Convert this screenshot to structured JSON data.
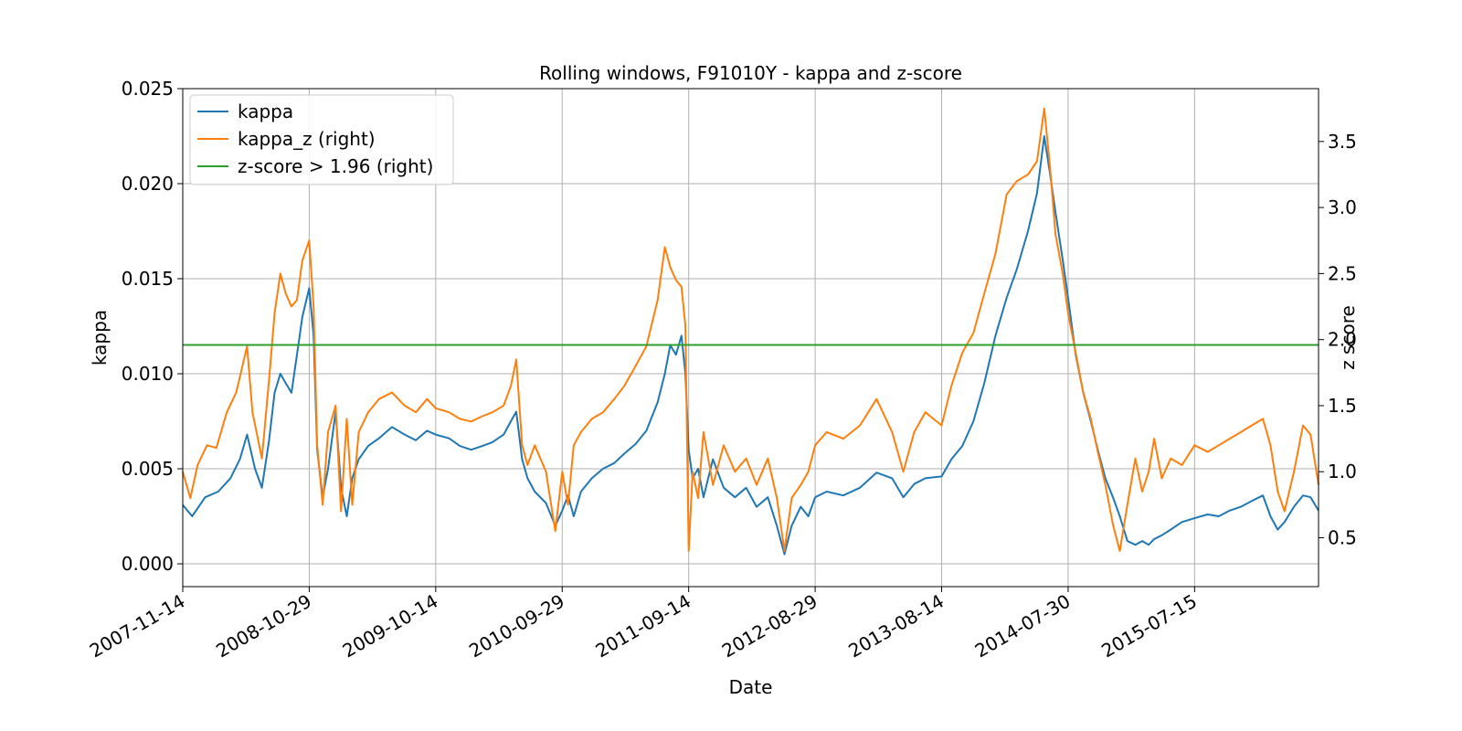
{
  "chart_data": {
    "type": "line",
    "title": "Rolling windows, F91010Y - kappa and z-score",
    "xlabel": "Date",
    "ylabel": "kappa",
    "y2label": "z score",
    "x_ticks": [
      "2007-11-14",
      "2008-10-29",
      "2009-10-14",
      "2010-09-29",
      "2011-09-14",
      "2012-08-29",
      "2013-08-14",
      "2014-07-30",
      "2015-07-15"
    ],
    "xlim": [
      "2007-11-14",
      "2016-06-22"
    ],
    "ylim": [
      -0.0012,
      0.025
    ],
    "y_ticks": [
      "0.000",
      "0.005",
      "0.010",
      "0.015",
      "0.020",
      "0.025"
    ],
    "y2lim": [
      0.13,
      3.9
    ],
    "y2_ticks": [
      "0.5",
      "1.0",
      "1.5",
      "2.0",
      "2.5",
      "3.0",
      "3.5"
    ],
    "grid": true,
    "legend_position": "top-left",
    "legend": [
      "kappa",
      "kappa_z (right)",
      "z-score > 1.96 (right)"
    ],
    "series": [
      {
        "name": "kappa",
        "axis": "left",
        "color": "#1f77b4",
        "points": [
          [
            "2007-11-14",
            0.0031
          ],
          [
            "2007-12-10",
            0.0025
          ],
          [
            "2008-01-15",
            0.0035
          ],
          [
            "2008-02-20",
            0.0038
          ],
          [
            "2008-03-25",
            0.0045
          ],
          [
            "2008-04-20",
            0.0055
          ],
          [
            "2008-05-10",
            0.0068
          ],
          [
            "2008-06-01",
            0.005
          ],
          [
            "2008-06-20",
            0.004
          ],
          [
            "2008-07-10",
            0.0065
          ],
          [
            "2008-07-25",
            0.009
          ],
          [
            "2008-08-10",
            0.01
          ],
          [
            "2008-08-25",
            0.0095
          ],
          [
            "2008-09-10",
            0.009
          ],
          [
            "2008-09-25",
            0.011
          ],
          [
            "2008-10-10",
            0.013
          ],
          [
            "2008-10-29",
            0.0145
          ],
          [
            "2008-11-10",
            0.012
          ],
          [
            "2008-11-20",
            0.006
          ],
          [
            "2008-12-05",
            0.0035
          ],
          [
            "2008-12-20",
            0.005
          ],
          [
            "2009-01-10",
            0.008
          ],
          [
            "2009-01-25",
            0.004
          ],
          [
            "2009-02-10",
            0.0025
          ],
          [
            "2009-02-25",
            0.0045
          ],
          [
            "2009-03-15",
            0.0055
          ],
          [
            "2009-04-10",
            0.0062
          ],
          [
            "2009-05-10",
            0.0066
          ],
          [
            "2009-06-15",
            0.0072
          ],
          [
            "2009-07-20",
            0.0068
          ],
          [
            "2009-08-20",
            0.0065
          ],
          [
            "2009-09-20",
            0.007
          ],
          [
            "2009-10-14",
            0.0068
          ],
          [
            "2009-11-20",
            0.0066
          ],
          [
            "2009-12-20",
            0.0062
          ],
          [
            "2010-01-20",
            0.006
          ],
          [
            "2010-02-20",
            0.0062
          ],
          [
            "2010-03-20",
            0.0064
          ],
          [
            "2010-04-20",
            0.0068
          ],
          [
            "2010-05-10",
            0.0075
          ],
          [
            "2010-05-25",
            0.008
          ],
          [
            "2010-06-10",
            0.0055
          ],
          [
            "2010-06-25",
            0.0045
          ],
          [
            "2010-07-15",
            0.0038
          ],
          [
            "2010-08-15",
            0.0032
          ],
          [
            "2010-09-10",
            0.002
          ],
          [
            "2010-09-29",
            0.0028
          ],
          [
            "2010-10-15",
            0.0036
          ],
          [
            "2010-10-31",
            0.0025
          ],
          [
            "2010-11-20",
            0.0038
          ],
          [
            "2010-12-20",
            0.0045
          ],
          [
            "2011-01-20",
            0.005
          ],
          [
            "2011-02-20",
            0.0053
          ],
          [
            "2011-03-20",
            0.0058
          ],
          [
            "2011-04-20",
            0.0063
          ],
          [
            "2011-05-20",
            0.007
          ],
          [
            "2011-06-20",
            0.0085
          ],
          [
            "2011-07-10",
            0.01
          ],
          [
            "2011-07-25",
            0.0115
          ],
          [
            "2011-08-10",
            0.011
          ],
          [
            "2011-08-25",
            0.012
          ],
          [
            "2011-09-05",
            0.01
          ],
          [
            "2011-09-14",
            0.006
          ],
          [
            "2011-09-25",
            0.0045
          ],
          [
            "2011-10-10",
            0.005
          ],
          [
            "2011-10-25",
            0.0035
          ],
          [
            "2011-11-20",
            0.0055
          ],
          [
            "2011-12-20",
            0.004
          ],
          [
            "2012-01-20",
            0.0035
          ],
          [
            "2012-02-20",
            0.004
          ],
          [
            "2012-03-20",
            0.003
          ],
          [
            "2012-04-20",
            0.0035
          ],
          [
            "2012-05-15",
            0.002
          ],
          [
            "2012-06-05",
            0.0005
          ],
          [
            "2012-06-25",
            0.002
          ],
          [
            "2012-07-20",
            0.003
          ],
          [
            "2012-08-10",
            0.0025
          ],
          [
            "2012-08-29",
            0.0035
          ],
          [
            "2012-09-30",
            0.0038
          ],
          [
            "2012-11-15",
            0.0036
          ],
          [
            "2012-12-31",
            0.004
          ],
          [
            "2013-02-15",
            0.0048
          ],
          [
            "2013-03-30",
            0.0045
          ],
          [
            "2013-04-30",
            0.0035
          ],
          [
            "2013-05-30",
            0.0042
          ],
          [
            "2013-06-30",
            0.0045
          ],
          [
            "2013-08-14",
            0.0046
          ],
          [
            "2013-09-10",
            0.0055
          ],
          [
            "2013-10-10",
            0.0062
          ],
          [
            "2013-11-10",
            0.0075
          ],
          [
            "2013-12-10",
            0.0095
          ],
          [
            "2014-01-10",
            0.012
          ],
          [
            "2014-02-10",
            0.014
          ],
          [
            "2014-03-10",
            0.0155
          ],
          [
            "2014-04-10",
            0.0175
          ],
          [
            "2014-05-05",
            0.0195
          ],
          [
            "2014-05-25",
            0.0225
          ],
          [
            "2014-06-10",
            0.0205
          ],
          [
            "2014-06-25",
            0.0185
          ],
          [
            "2014-07-15",
            0.016
          ],
          [
            "2014-07-30",
            0.014
          ],
          [
            "2014-08-20",
            0.011
          ],
          [
            "2014-09-10",
            0.009
          ],
          [
            "2014-10-01",
            0.0075
          ],
          [
            "2014-10-20",
            0.006
          ],
          [
            "2014-11-10",
            0.0045
          ],
          [
            "2014-12-01",
            0.0035
          ],
          [
            "2014-12-20",
            0.0025
          ],
          [
            "2015-01-10",
            0.0012
          ],
          [
            "2015-02-01",
            0.001
          ],
          [
            "2015-02-20",
            0.0012
          ],
          [
            "2015-03-10",
            0.001
          ],
          [
            "2015-03-25",
            0.0013
          ],
          [
            "2015-04-15",
            0.0015
          ],
          [
            "2015-05-10",
            0.0018
          ],
          [
            "2015-06-10",
            0.0022
          ],
          [
            "2015-07-15",
            0.0024
          ],
          [
            "2015-08-20",
            0.0026
          ],
          [
            "2015-09-20",
            0.0025
          ],
          [
            "2015-10-20",
            0.0028
          ],
          [
            "2015-11-20",
            0.003
          ],
          [
            "2015-12-20",
            0.0033
          ],
          [
            "2016-01-20",
            0.0036
          ],
          [
            "2016-02-10",
            0.0025
          ],
          [
            "2016-03-01",
            0.0018
          ],
          [
            "2016-03-20",
            0.0022
          ],
          [
            "2016-04-15",
            0.003
          ],
          [
            "2016-05-10",
            0.0036
          ],
          [
            "2016-05-31",
            0.0035
          ],
          [
            "2016-06-22",
            0.0028
          ]
        ]
      },
      {
        "name": "kappa_z (right)",
        "axis": "right",
        "color": "#ff7f0e",
        "points": [
          [
            "2007-11-14",
            1.0
          ],
          [
            "2007-12-05",
            0.8
          ],
          [
            "2007-12-25",
            1.05
          ],
          [
            "2008-01-20",
            1.2
          ],
          [
            "2008-02-15",
            1.18
          ],
          [
            "2008-03-15",
            1.45
          ],
          [
            "2008-04-10",
            1.6
          ],
          [
            "2008-05-10",
            1.95
          ],
          [
            "2008-05-25",
            1.45
          ],
          [
            "2008-06-20",
            1.1
          ],
          [
            "2008-07-10",
            1.7
          ],
          [
            "2008-07-25",
            2.2
          ],
          [
            "2008-08-10",
            2.5
          ],
          [
            "2008-08-25",
            2.35
          ],
          [
            "2008-09-10",
            2.25
          ],
          [
            "2008-09-25",
            2.3
          ],
          [
            "2008-10-10",
            2.6
          ],
          [
            "2008-10-29",
            2.75
          ],
          [
            "2008-11-10",
            2.25
          ],
          [
            "2008-11-20",
            1.2
          ],
          [
            "2008-12-05",
            0.75
          ],
          [
            "2008-12-20",
            1.3
          ],
          [
            "2009-01-10",
            1.5
          ],
          [
            "2009-01-25",
            0.7
          ],
          [
            "2009-02-10",
            1.4
          ],
          [
            "2009-02-25",
            0.75
          ],
          [
            "2009-03-15",
            1.3
          ],
          [
            "2009-04-10",
            1.45
          ],
          [
            "2009-05-10",
            1.55
          ],
          [
            "2009-06-15",
            1.6
          ],
          [
            "2009-07-20",
            1.5
          ],
          [
            "2009-08-20",
            1.45
          ],
          [
            "2009-09-20",
            1.55
          ],
          [
            "2009-10-14",
            1.48
          ],
          [
            "2009-11-20",
            1.45
          ],
          [
            "2009-12-20",
            1.4
          ],
          [
            "2010-01-20",
            1.38
          ],
          [
            "2010-02-20",
            1.42
          ],
          [
            "2010-03-20",
            1.45
          ],
          [
            "2010-04-20",
            1.5
          ],
          [
            "2010-05-10",
            1.65
          ],
          [
            "2010-05-25",
            1.85
          ],
          [
            "2010-06-10",
            1.2
          ],
          [
            "2010-06-25",
            1.05
          ],
          [
            "2010-07-15",
            1.2
          ],
          [
            "2010-08-15",
            1.0
          ],
          [
            "2010-09-10",
            0.55
          ],
          [
            "2010-09-29",
            1.0
          ],
          [
            "2010-10-15",
            0.75
          ],
          [
            "2010-10-31",
            1.2
          ],
          [
            "2010-11-20",
            1.3
          ],
          [
            "2010-12-20",
            1.4
          ],
          [
            "2011-01-20",
            1.45
          ],
          [
            "2011-02-20",
            1.55
          ],
          [
            "2011-03-20",
            1.65
          ],
          [
            "2011-04-20",
            1.8
          ],
          [
            "2011-05-20",
            1.95
          ],
          [
            "2011-06-20",
            2.3
          ],
          [
            "2011-07-10",
            2.7
          ],
          [
            "2011-07-25",
            2.55
          ],
          [
            "2011-08-10",
            2.45
          ],
          [
            "2011-08-25",
            2.4
          ],
          [
            "2011-09-05",
            2.1
          ],
          [
            "2011-09-14",
            0.4
          ],
          [
            "2011-09-25",
            1.0
          ],
          [
            "2011-10-10",
            0.8
          ],
          [
            "2011-10-25",
            1.3
          ],
          [
            "2011-11-20",
            0.9
          ],
          [
            "2011-12-20",
            1.2
          ],
          [
            "2012-01-20",
            1.0
          ],
          [
            "2012-02-20",
            1.1
          ],
          [
            "2012-03-20",
            0.9
          ],
          [
            "2012-04-20",
            1.1
          ],
          [
            "2012-05-15",
            0.8
          ],
          [
            "2012-06-05",
            0.4
          ],
          [
            "2012-06-25",
            0.8
          ],
          [
            "2012-07-20",
            0.9
          ],
          [
            "2012-08-10",
            1.0
          ],
          [
            "2012-08-29",
            1.2
          ],
          [
            "2012-09-30",
            1.3
          ],
          [
            "2012-11-15",
            1.25
          ],
          [
            "2012-12-31",
            1.35
          ],
          [
            "2013-02-15",
            1.55
          ],
          [
            "2013-03-30",
            1.3
          ],
          [
            "2013-04-30",
            1.0
          ],
          [
            "2013-05-30",
            1.3
          ],
          [
            "2013-06-30",
            1.45
          ],
          [
            "2013-08-14",
            1.35
          ],
          [
            "2013-09-10",
            1.65
          ],
          [
            "2013-10-10",
            1.9
          ],
          [
            "2013-11-10",
            2.05
          ],
          [
            "2013-12-10",
            2.35
          ],
          [
            "2014-01-10",
            2.65
          ],
          [
            "2014-02-10",
            3.1
          ],
          [
            "2014-03-10",
            3.2
          ],
          [
            "2014-04-10",
            3.25
          ],
          [
            "2014-05-05",
            3.35
          ],
          [
            "2014-05-25",
            3.75
          ],
          [
            "2014-06-10",
            3.3
          ],
          [
            "2014-06-25",
            2.8
          ],
          [
            "2014-07-15",
            2.5
          ],
          [
            "2014-07-30",
            2.2
          ],
          [
            "2014-08-20",
            1.9
          ],
          [
            "2014-09-10",
            1.6
          ],
          [
            "2014-10-01",
            1.4
          ],
          [
            "2014-10-20",
            1.15
          ],
          [
            "2014-11-10",
            0.9
          ],
          [
            "2014-12-01",
            0.6
          ],
          [
            "2014-12-20",
            0.4
          ],
          [
            "2015-01-10",
            0.75
          ],
          [
            "2015-02-01",
            1.1
          ],
          [
            "2015-02-20",
            0.85
          ],
          [
            "2015-03-10",
            1.0
          ],
          [
            "2015-03-25",
            1.25
          ],
          [
            "2015-04-15",
            0.95
          ],
          [
            "2015-05-10",
            1.1
          ],
          [
            "2015-06-10",
            1.05
          ],
          [
            "2015-07-15",
            1.2
          ],
          [
            "2015-08-20",
            1.15
          ],
          [
            "2015-09-20",
            1.2
          ],
          [
            "2015-10-20",
            1.25
          ],
          [
            "2015-11-20",
            1.3
          ],
          [
            "2015-12-20",
            1.35
          ],
          [
            "2016-01-20",
            1.4
          ],
          [
            "2016-02-10",
            1.2
          ],
          [
            "2016-03-01",
            0.85
          ],
          [
            "2016-03-20",
            0.7
          ],
          [
            "2016-04-15",
            1.0
          ],
          [
            "2016-05-10",
            1.35
          ],
          [
            "2016-05-31",
            1.28
          ],
          [
            "2016-06-22",
            0.9
          ]
        ]
      },
      {
        "name": "z-score > 1.96 (right)",
        "axis": "right",
        "color": "#2ca02c",
        "points": [
          [
            "2007-11-14",
            1.96
          ],
          [
            "2016-06-22",
            1.96
          ]
        ]
      }
    ]
  }
}
